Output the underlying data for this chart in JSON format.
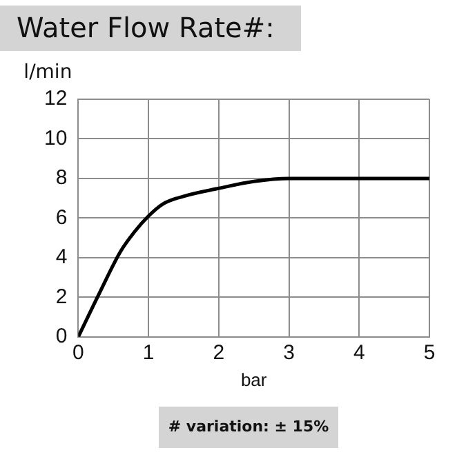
{
  "chart_data": {
    "type": "line",
    "title": "Water Flow Rate#:",
    "xlabel": "bar",
    "ylabel": "l/min",
    "annotations": [
      "# variation: ± 15%"
    ],
    "series": [
      {
        "color": "#000000",
        "x": [
          0,
          0.3,
          0.6,
          0.8,
          1,
          1.2,
          1.5,
          2,
          2.5,
          3,
          3.5,
          4,
          5
        ],
        "values": [
          0,
          2.2,
          4.3,
          5.3,
          6.1,
          6.7,
          7.1,
          7.5,
          7.85,
          8,
          8,
          8,
          8
        ]
      }
    ],
    "xlim": [
      0,
      5
    ],
    "xticks": [
      0,
      1,
      2,
      3,
      4,
      5
    ],
    "ylim": [
      0,
      12
    ],
    "yticks": [
      0,
      2,
      4,
      6,
      8,
      10,
      12
    ],
    "grid": true,
    "marker": "none",
    "line_style": "solid"
  }
}
